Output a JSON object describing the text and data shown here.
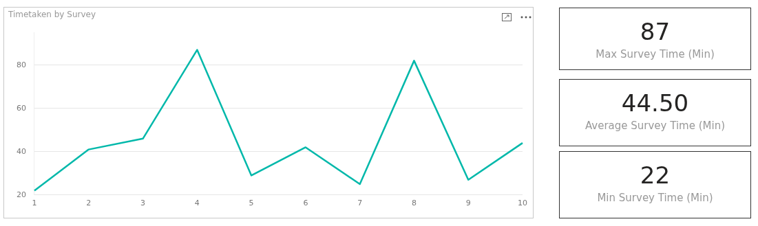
{
  "chart_data": [
    {
      "type": "line",
      "title": "Timetaken by Survey",
      "categories": [
        "1",
        "2",
        "3",
        "4",
        "5",
        "6",
        "7",
        "8",
        "9",
        "10"
      ],
      "series": [
        {
          "color": "#01b8aa",
          "values": [
            22,
            41,
            46,
            87,
            29,
            42,
            25,
            82,
            27,
            44
          ]
        }
      ],
      "ylim": [
        20,
        95
      ],
      "yticks": [
        20,
        40,
        60,
        80
      ],
      "grid": "y",
      "legend": false,
      "marker": "none",
      "line_style": "solid"
    },
    {
      "type": "other",
      "annotations": [
        "87",
        "Max Survey Time (Min)"
      ]
    },
    {
      "type": "other",
      "annotations": [
        "44.50",
        "Average Survey Time (Min)"
      ]
    },
    {
      "type": "other",
      "annotations": [
        "22",
        "Min Survey Time (Min)"
      ]
    }
  ]
}
